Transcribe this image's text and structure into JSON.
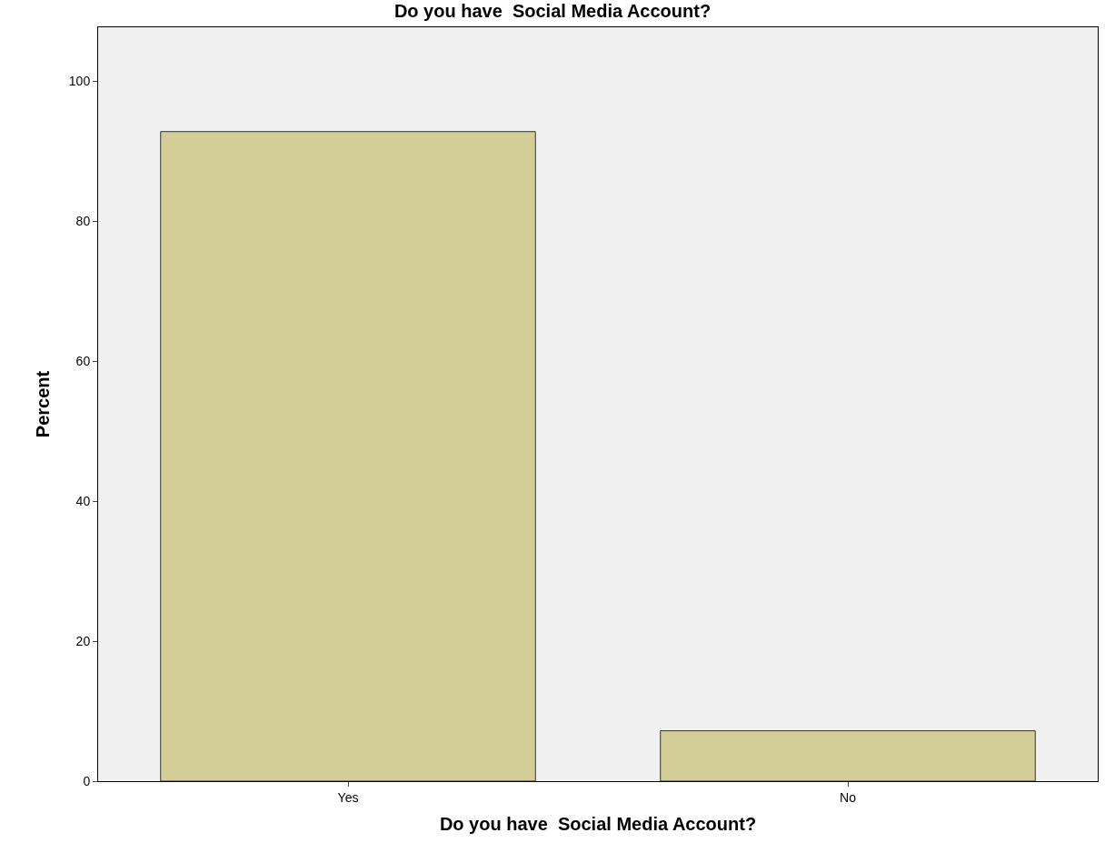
{
  "chart_data": {
    "type": "bar",
    "title": "Do you have  Social Media Account?",
    "xlabel": "Do you have  Social Media Account?",
    "ylabel": "Percent",
    "categories": [
      "Yes",
      "No"
    ],
    "values": [
      92.8,
      7.2
    ],
    "color": "#d3cd97",
    "ylim": [
      0,
      107.7
    ],
    "yticks": [
      0,
      20,
      40,
      60,
      80,
      100
    ],
    "grid": false,
    "legend": false
  }
}
